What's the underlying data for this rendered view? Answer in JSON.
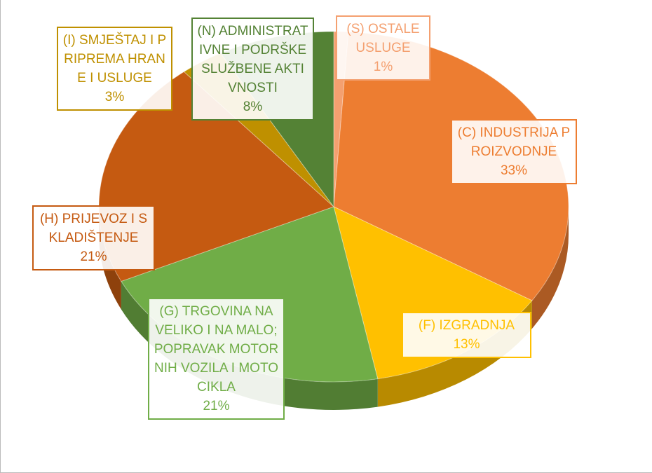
{
  "chart_data": {
    "type": "pie",
    "categories": [
      "(S) OSTALE USLUGE",
      "(C) INDUSTRIJA PROIZVODNJE",
      "(F) IZGRADNJA",
      "(G) TRGOVINA NA VELIKO I NA MALO; POPRAVAK MOTORNIH VOZILA I MOTOCIKLA",
      "(H) PRIJEVOZ I SKLADIŠTENJE",
      "(I) SMJEŠTAJ I PRIPREMA HRANE I USLUGE",
      "(N) ADMINISTRATIVNE I PODRŠKE SLUŽBENE AKTIVNOSTI"
    ],
    "values": [
      1,
      33,
      13,
      21,
      21,
      3,
      8
    ],
    "value_labels": [
      "1%",
      "33%",
      "13%",
      "21%",
      "21%",
      "3%",
      "8%"
    ],
    "colors": [
      "#f4a070",
      "#ed7d31",
      "#ffc000",
      "#70ad47",
      "#c55a11",
      "#bf9000",
      "#548235"
    ]
  }
}
